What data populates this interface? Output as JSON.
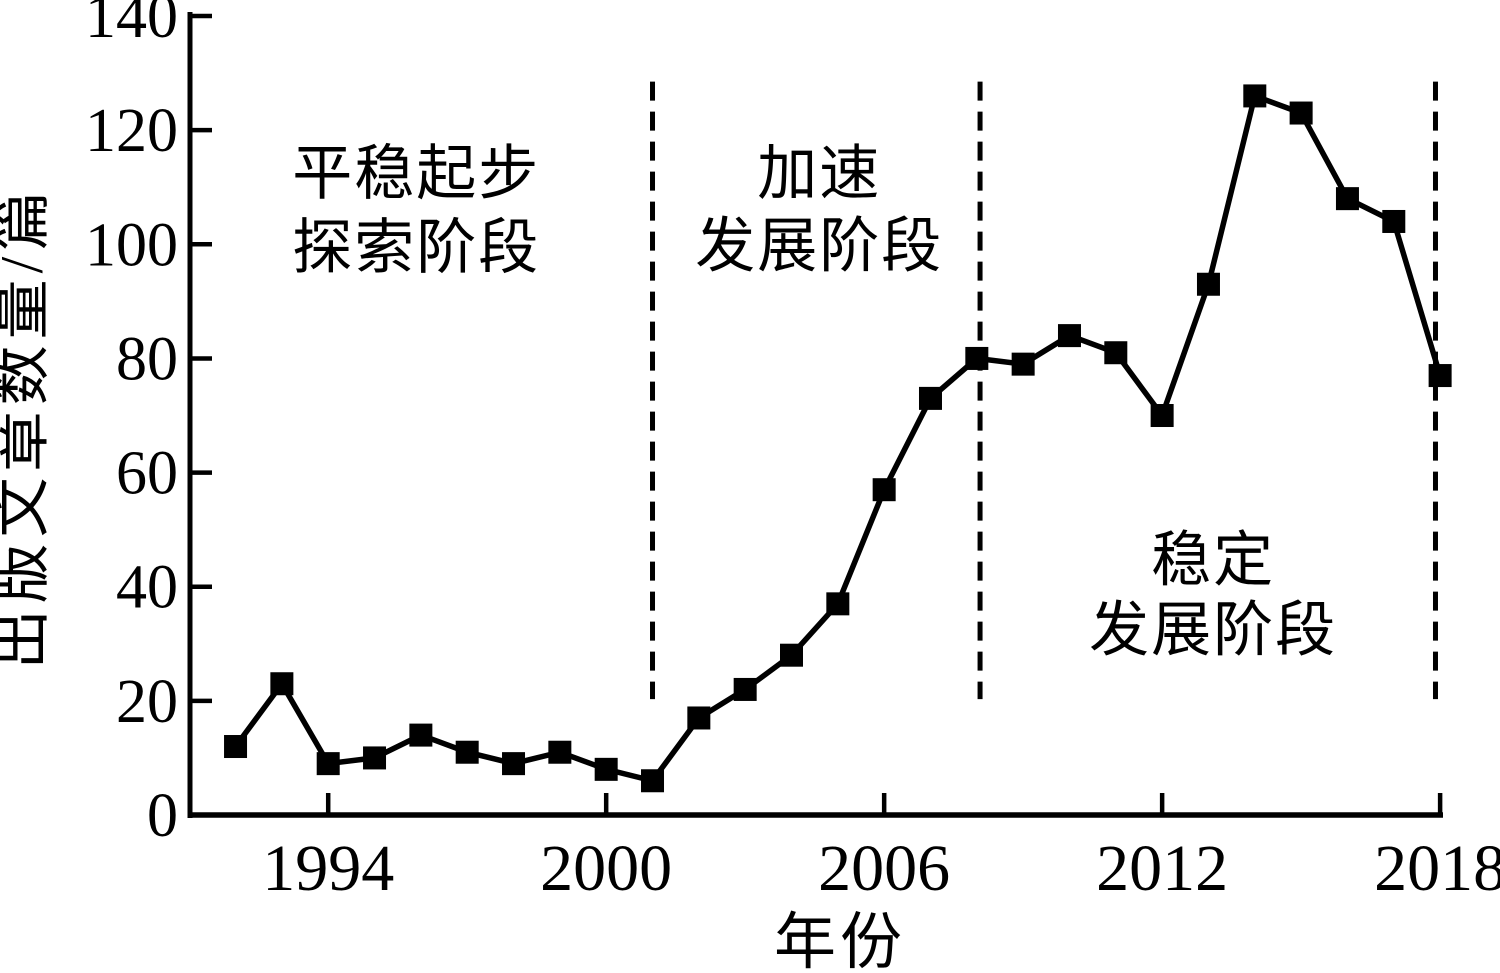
{
  "figure": {
    "background": "#ffffff",
    "ink": "#000000"
  },
  "chart_data": {
    "type": "line",
    "title": "",
    "xlabel": "年份",
    "ylabel": "出版文章数量/篇",
    "x": [
      1992,
      1993,
      1994,
      1995,
      1996,
      1997,
      1998,
      1999,
      2000,
      2001,
      2002,
      2003,
      2004,
      2005,
      2006,
      2007,
      2008,
      2009,
      2010,
      2011,
      2012,
      2013,
      2014,
      2015,
      2016,
      2017,
      2018
    ],
    "values": [
      12,
      23,
      9,
      10,
      14,
      11,
      9,
      11,
      8,
      6,
      17,
      22,
      28,
      37,
      57,
      73,
      80,
      79,
      84,
      81,
      70,
      93,
      126,
      123,
      108,
      104,
      77
    ],
    "xticks": [
      1994,
      2000,
      2006,
      2012,
      2018
    ],
    "yticks": [
      0,
      20,
      40,
      60,
      80,
      100,
      120,
      140
    ],
    "xlim": [
      1991,
      2019.1
    ],
    "ylim": [
      0,
      140
    ],
    "grid": false,
    "legend": null,
    "marker": "filled-square",
    "line_color": "#000000",
    "marker_color": "#000000",
    "dividers": {
      "style": "dashed",
      "years": [
        2001.0,
        2008.07,
        2017.9
      ],
      "unit_span": [
        20.3,
        128.5
      ]
    },
    "annotations": [
      {
        "id": "phase-1",
        "lines": [
          "平稳起步",
          "探索阶段"
        ],
        "year": 1995.9,
        "units": [
          112.5,
          99.5
        ]
      },
      {
        "id": "phase-2",
        "lines": [
          "加速",
          "发展阶段"
        ],
        "year": 2004.6,
        "units": [
          112.5,
          99.8
        ]
      },
      {
        "id": "phase-3",
        "lines": [
          "稳定",
          "发展阶段"
        ],
        "year": 2013.1,
        "units": [
          44.8,
          32.5
        ]
      }
    ]
  }
}
